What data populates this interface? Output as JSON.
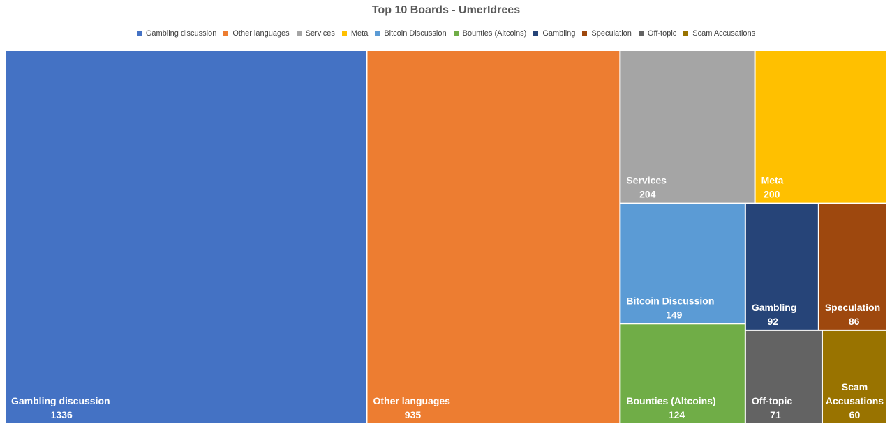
{
  "chart_data": {
    "type": "treemap",
    "title": "Top 10 Boards - UmerIdrees",
    "legend_position": "top",
    "categories": [
      {
        "name": "Gambling discussion",
        "value": 1336,
        "color": "#4472C4",
        "label_lines": [
          "Gambling discussion"
        ]
      },
      {
        "name": "Other languages",
        "value": 935,
        "color": "#ED7D31",
        "label_lines": [
          "Other languages"
        ]
      },
      {
        "name": "Services",
        "value": 204,
        "color": "#A5A5A5",
        "label_lines": [
          "Services"
        ]
      },
      {
        "name": "Meta",
        "value": 200,
        "color": "#FFC000",
        "label_lines": [
          "Meta"
        ]
      },
      {
        "name": "Bitcoin Discussion",
        "value": 149,
        "color": "#5B9BD5",
        "label_lines": [
          "Bitcoin Discussion"
        ]
      },
      {
        "name": "Bounties (Altcoins)",
        "value": 124,
        "color": "#70AD47",
        "label_lines": [
          "Bounties (Altcoins)"
        ]
      },
      {
        "name": "Gambling",
        "value": 92,
        "color": "#264478",
        "label_lines": [
          "Gambling"
        ]
      },
      {
        "name": "Speculation",
        "value": 86,
        "color": "#9E480E",
        "label_lines": [
          "Speculation"
        ]
      },
      {
        "name": "Off-topic",
        "value": 71,
        "color": "#636363",
        "label_lines": [
          "Off-topic"
        ]
      },
      {
        "name": "Scam Accusations",
        "value": 60,
        "color": "#997300",
        "label_lines": [
          "Scam",
          "Accusations"
        ]
      }
    ]
  }
}
